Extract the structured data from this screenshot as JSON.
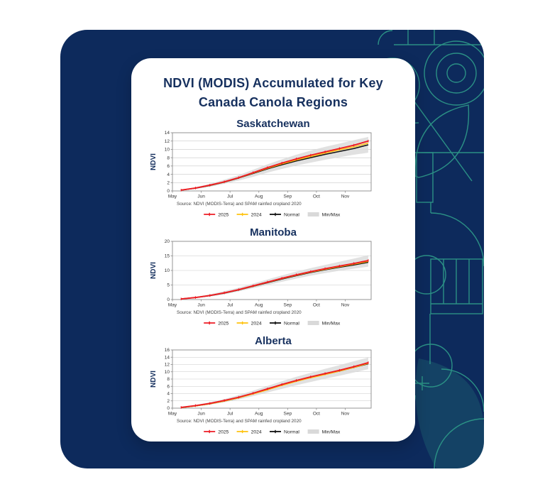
{
  "header": {
    "title_line1": "NDVI (MODIS) Accumulated for Key",
    "title_line2": "Canada Canola Regions"
  },
  "colors": {
    "panel_navy": "#0d2a5c",
    "pattern_teal": "#2f9c8a",
    "text_navy": "#16305e",
    "series_2025": "#ed1c24",
    "series_2024": "#ffc20e",
    "series_normal": "#111111",
    "band_gray": "#d9d9d9",
    "grid_gray": "#c9c9c9",
    "axis_gray": "#8a8a8a",
    "tick_text": "#333333"
  },
  "chart_data": [
    {
      "type": "line",
      "title": "Saskatchewan",
      "ylabel": "NDVI",
      "ylim": [
        0,
        14
      ],
      "yticks": [
        0,
        2,
        4,
        6,
        8,
        10,
        12,
        14
      ],
      "x_months": [
        "May",
        "Jun",
        "Jul",
        "Aug",
        "Sep",
        "Oct",
        "Nov"
      ],
      "x": [
        0.3,
        0.8,
        1.3,
        1.8,
        2.3,
        2.8,
        3.3,
        3.8,
        4.3,
        4.8,
        5.3,
        5.8,
        6.3,
        6.8
      ],
      "series": [
        {
          "name": "2025",
          "color": "#ed1c24",
          "marker": true,
          "values": [
            0.2,
            0.7,
            1.4,
            2.2,
            3.2,
            4.4,
            5.6,
            6.7,
            7.7,
            8.6,
            9.4,
            10.2,
            11.0,
            12.0
          ]
        },
        {
          "name": "2024",
          "color": "#ffc20e",
          "marker": false,
          "values": [
            0.2,
            0.7,
            1.35,
            2.15,
            3.15,
            4.3,
            5.45,
            6.5,
            7.45,
            8.3,
            9.1,
            9.9,
            10.6,
            11.5
          ]
        },
        {
          "name": "Normal",
          "color": "#111111",
          "marker": false,
          "values": [
            0.2,
            0.65,
            1.3,
            2.1,
            3.1,
            4.2,
            5.3,
            6.3,
            7.2,
            8.0,
            8.8,
            9.5,
            10.2,
            11.1
          ]
        }
      ],
      "band": {
        "name": "Min/Max",
        "color": "#d9d9d9",
        "lower": [
          0.1,
          0.5,
          1.0,
          1.7,
          2.5,
          3.4,
          4.4,
          5.3,
          6.1,
          6.8,
          7.5,
          8.1,
          8.7,
          9.2
        ],
        "upper": [
          0.3,
          0.9,
          1.7,
          2.7,
          3.8,
          5.1,
          6.4,
          7.6,
          8.7,
          9.7,
          10.6,
          11.4,
          12.2,
          13.0
        ]
      },
      "source": "Source: NDVI (MODIS-Terra) and SPAM rainfed cropland 2020",
      "legend": [
        "2025",
        "2024",
        "Normal",
        "Min/Max"
      ],
      "legend_position": "bottom",
      "grid": true
    },
    {
      "type": "line",
      "title": "Manitoba",
      "ylabel": "NDVI",
      "ylim": [
        0,
        20
      ],
      "yticks": [
        0,
        5,
        10,
        15,
        20
      ],
      "x_months": [
        "May",
        "Jun",
        "Jul",
        "Aug",
        "Sep",
        "Oct",
        "Nov"
      ],
      "x": [
        0.3,
        0.8,
        1.3,
        1.8,
        2.3,
        2.8,
        3.3,
        3.8,
        4.3,
        4.8,
        5.3,
        5.8,
        6.3,
        6.8
      ],
      "series": [
        {
          "name": "2025",
          "color": "#ed1c24",
          "marker": true,
          "values": [
            0.2,
            0.7,
            1.4,
            2.3,
            3.4,
            4.7,
            6.0,
            7.3,
            8.5,
            9.6,
            10.6,
            11.5,
            12.4,
            13.4
          ]
        },
        {
          "name": "2024",
          "color": "#ffc20e",
          "marker": false,
          "values": [
            0.2,
            0.7,
            1.4,
            2.25,
            3.35,
            4.6,
            5.9,
            7.2,
            8.35,
            9.45,
            10.4,
            11.3,
            12.15,
            13.1
          ]
        },
        {
          "name": "Normal",
          "color": "#111111",
          "marker": false,
          "values": [
            0.2,
            0.7,
            1.35,
            2.2,
            3.3,
            4.55,
            5.8,
            7.05,
            8.2,
            9.3,
            10.25,
            11.1,
            11.9,
            12.8
          ]
        }
      ],
      "band": {
        "name": "Min/Max",
        "color": "#d9d9d9",
        "lower": [
          0.1,
          0.5,
          1.0,
          1.8,
          2.8,
          3.9,
          5.0,
          6.1,
          7.2,
          8.2,
          9.1,
          9.9,
          10.6,
          11.3
        ],
        "upper": [
          0.3,
          0.95,
          1.8,
          2.9,
          4.1,
          5.5,
          6.9,
          8.3,
          9.6,
          10.8,
          11.9,
          13.0,
          14.1,
          15.2
        ]
      },
      "source": "Source: NDVI (MODIS-Terra) and SPAM rainfed cropland 2020",
      "legend": [
        "2025",
        "2024",
        "Normal",
        "Min/Max"
      ],
      "legend_position": "bottom",
      "grid": true
    },
    {
      "type": "line",
      "title": "Alberta",
      "ylabel": "NDVI",
      "ylim": [
        0,
        16
      ],
      "yticks": [
        0,
        2,
        4,
        6,
        8,
        10,
        12,
        14,
        16
      ],
      "x_months": [
        "May",
        "Jun",
        "Jul",
        "Aug",
        "Sep",
        "Oct",
        "Nov"
      ],
      "x": [
        0.3,
        0.8,
        1.3,
        1.8,
        2.3,
        2.8,
        3.3,
        3.8,
        4.3,
        4.8,
        5.3,
        5.8,
        6.3,
        6.8
      ],
      "series": [
        {
          "name": "2025",
          "color": "#ed1c24",
          "marker": true,
          "values": [
            0.2,
            0.7,
            1.3,
            2.1,
            3.0,
            4.1,
            5.3,
            6.5,
            7.6,
            8.6,
            9.5,
            10.4,
            11.4,
            12.5
          ]
        },
        {
          "name": "2024",
          "color": "#ffc20e",
          "marker": false,
          "values": [
            0.15,
            0.6,
            1.2,
            1.95,
            2.85,
            3.9,
            5.05,
            6.25,
            7.35,
            8.35,
            9.25,
            10.2,
            11.2,
            12.3
          ]
        },
        {
          "name": "Normal",
          "color": "#111111",
          "marker": false,
          "values": [
            0.15,
            0.6,
            1.2,
            1.95,
            2.85,
            3.95,
            5.1,
            6.3,
            7.4,
            8.4,
            9.3,
            10.2,
            11.2,
            12.2
          ]
        }
      ],
      "band": {
        "name": "Min/Max",
        "color": "#d9d9d9",
        "lower": [
          0.1,
          0.45,
          0.95,
          1.6,
          2.4,
          3.3,
          4.3,
          5.3,
          6.3,
          7.2,
          8.1,
          8.9,
          9.8,
          10.7
        ],
        "upper": [
          0.25,
          0.85,
          1.6,
          2.5,
          3.6,
          4.8,
          6.1,
          7.4,
          8.6,
          9.7,
          10.8,
          11.8,
          12.9,
          13.9
        ]
      },
      "source": "Source: NDVI (MODIS-Terra) and SPAM rainfed cropland 2020",
      "legend": [
        "2025",
        "2024",
        "Normal",
        "Min/Max"
      ],
      "legend_position": "bottom",
      "grid": true
    }
  ]
}
